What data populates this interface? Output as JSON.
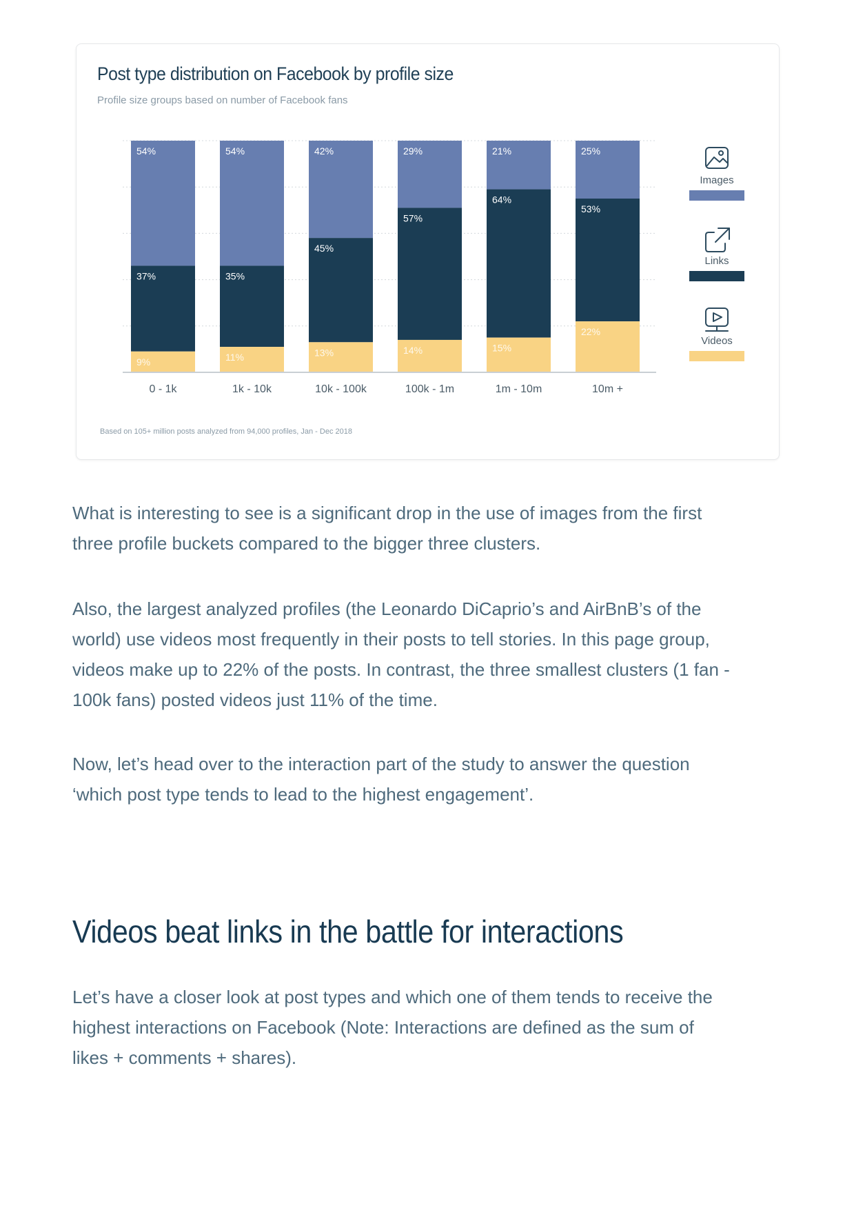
{
  "chart_data": {
    "type": "bar",
    "stacked": true,
    "title": "Post type distribution on Facebook by profile size",
    "subtitle": "Profile size groups based on number of Facebook fans",
    "categories": [
      "0 - 1k",
      "1k - 10k",
      "10k - 100k",
      "100k - 1m",
      "1m - 10m",
      "10m +"
    ],
    "series": [
      {
        "name": "Images",
        "values": [
          54,
          54,
          42,
          29,
          21,
          25
        ],
        "color": "#677eb0",
        "icon": "image-icon"
      },
      {
        "name": "Links",
        "values": [
          37,
          35,
          45,
          57,
          64,
          53
        ],
        "color": "#1b3d54",
        "icon": "external-link-icon"
      },
      {
        "name": "Videos",
        "values": [
          9,
          11,
          13,
          14,
          15,
          22
        ],
        "color": "#f9d384",
        "icon": "play-icon"
      }
    ],
    "value_suffix": "%",
    "ylim": [
      0,
      100
    ],
    "grid": true,
    "legend_position": "right",
    "footnote": "Based on 105+ million posts analyzed from 94,000 profiles, Jan - Dec 2018"
  },
  "paragraphs": [
    [
      "What is interesting to see is a significant drop in the use of images from the first",
      "three profile buckets compared to the bigger three clusters."
    ],
    [
      "Also, the largest analyzed profiles (the Leonardo DiCaprio’s and AirBnB’s of the",
      "world) use videos most frequently in their posts to tell stories. In this page group,",
      "videos make up to 22% of the posts. In contrast, the three smallest clusters (1 fan -",
      "100k fans) posted videos just 11% of the time."
    ],
    [
      "Now, let’s head over to the interaction part of the study to answer the question",
      "‘which post type tends to lead to the highest engagement’."
    ]
  ],
  "heading": "Videos beat links in the battle for interactions",
  "paragraph_after_heading": [
    "Let’s have a closer look at post types and which one of them tends to receive the",
    "highest interactions on Facebook (Note: Interactions are defined as the sum of",
    "likes + comments + shares)."
  ]
}
